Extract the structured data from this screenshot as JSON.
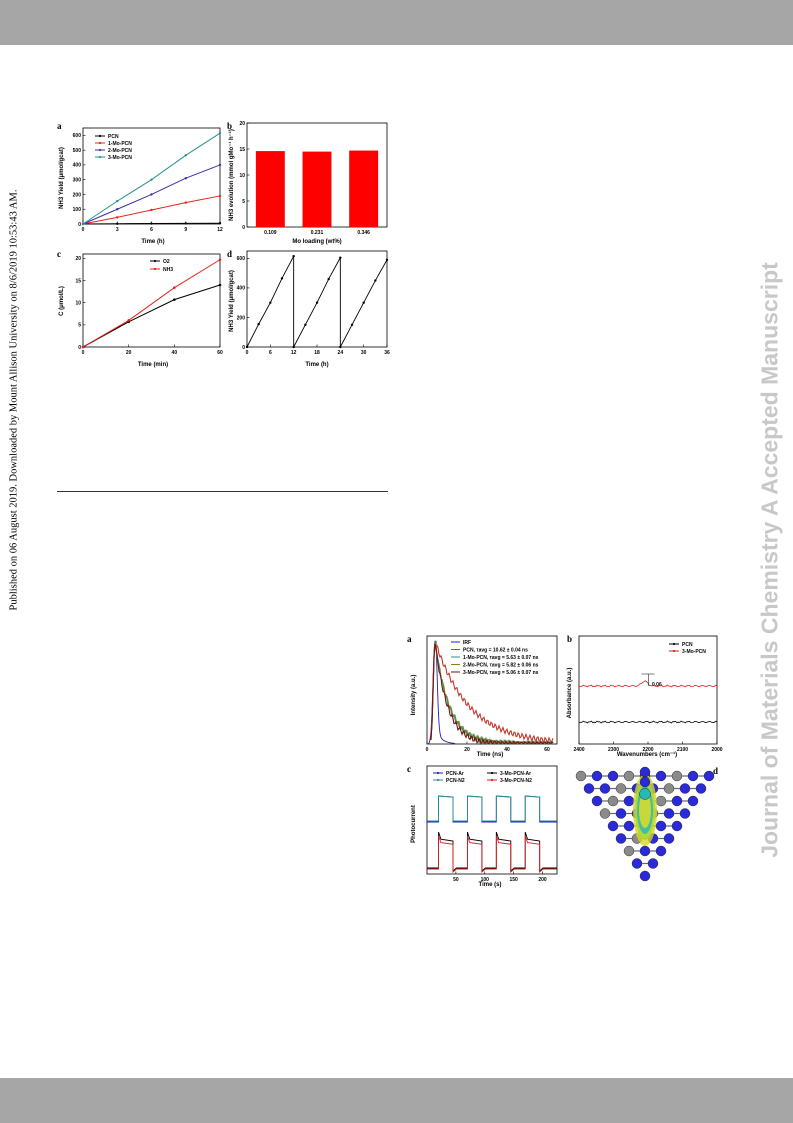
{
  "page": {
    "side_note": "Published on 06 August 2019. Downloaded by Mount Allison University on 8/6/2019 10:53:43 AM.",
    "watermark": "Journal of Materials Chemistry A Accepted Manuscript"
  },
  "figure1": {
    "panel_a": {
      "label": "a",
      "ylabel": "NH3 Yield (μmol/gcat)",
      "xlabel": "Time (h)"
    },
    "panel_b": {
      "label": "b",
      "ylabel": "NH3 evolution (mmol gMo⁻¹ h⁻¹)",
      "xlabel": "Mo loading (wt%)"
    },
    "panel_c": {
      "label": "c",
      "ylabel": "C (μmol/L)",
      "xlabel": "Time (min)"
    },
    "panel_d": {
      "label": "d",
      "ylabel": "NH3 Yield (μmol/gcat)",
      "xlabel": "Time (h)"
    }
  },
  "figure2": {
    "panel_a": {
      "label": "a",
      "ylabel": "Intensity (a.u.)",
      "xlabel": "Time (ns)"
    },
    "panel_b": {
      "label": "b",
      "ylabel": "Absorbance (a.u.)",
      "xlabel": "Wavenumbers (cm⁻¹)",
      "annotation": "0.06"
    },
    "panel_c": {
      "label": "c",
      "ylabel": "Photocurrent",
      "xlabel": "Time (s)"
    },
    "panel_d": {
      "label": "d"
    }
  },
  "chart_data": [
    {
      "type": "line",
      "id": "fig1a",
      "xlabel": "Time (h)",
      "ylabel": "NH3 Yield (μmol/gcat)",
      "xlim": [
        0,
        12
      ],
      "ylim": [
        0,
        650
      ],
      "xticks": [
        0,
        3,
        6,
        9,
        12
      ],
      "yticks": [
        0,
        100,
        200,
        300,
        400,
        500,
        600
      ],
      "x": [
        0,
        3,
        6,
        9,
        12
      ],
      "series": [
        {
          "name": "PCN",
          "color": "#000000",
          "values": [
            0,
            2,
            3,
            4,
            5
          ]
        },
        {
          "name": "1-Mo-PCN",
          "color": "#e8231c",
          "values": [
            0,
            45,
            95,
            145,
            190
          ]
        },
        {
          "name": "2-Mo-PCN",
          "color": "#3a2fa8",
          "values": [
            0,
            100,
            200,
            310,
            400
          ]
        },
        {
          "name": "3-Mo-PCN",
          "color": "#2a8f92",
          "values": [
            0,
            155,
            300,
            465,
            615
          ]
        }
      ]
    },
    {
      "type": "bar",
      "id": "fig1b",
      "xlabel": "Mo loading (wt%)",
      "ylabel": "NH3 evolution (mmol gMo⁻¹ h⁻¹)",
      "categories": [
        "0.109",
        "0.231",
        "0.346"
      ],
      "values": [
        14.6,
        14.5,
        14.7
      ],
      "ylim": [
        0,
        20
      ],
      "yticks": [
        0,
        5,
        10,
        15,
        20
      ],
      "color": "#ff0000"
    },
    {
      "type": "line",
      "id": "fig1c",
      "xlabel": "Time (min)",
      "ylabel": "C (μmol/L)",
      "xlim": [
        0,
        60
      ],
      "ylim": [
        0,
        21
      ],
      "xticks": [
        0,
        20,
        40,
        60
      ],
      "yticks": [
        0,
        5,
        10,
        15,
        20
      ],
      "x": [
        0,
        20,
        40,
        60
      ],
      "series": [
        {
          "name": "O2",
          "color": "#000000",
          "values": [
            0,
            5.7,
            10.7,
            14
          ]
        },
        {
          "name": "NH3",
          "color": "#e8231c",
          "values": [
            0,
            6,
            13.4,
            19.7
          ]
        }
      ]
    },
    {
      "type": "line",
      "id": "fig1d",
      "xlabel": "Time (h)",
      "ylabel": "NH3 Yield (μmol/gcat)",
      "xlim": [
        0,
        36
      ],
      "ylim": [
        0,
        650
      ],
      "xticks": [
        0,
        6,
        12,
        18,
        24,
        30,
        36
      ],
      "yticks": [
        0,
        200,
        400,
        600
      ],
      "x": [
        0,
        3,
        6,
        9,
        12,
        12,
        15,
        18,
        21,
        24,
        24,
        27,
        30,
        33,
        36
      ],
      "series": [
        {
          "color": "#000000",
          "values": [
            0,
            155,
            300,
            465,
            615,
            0,
            150,
            300,
            460,
            605,
            0,
            150,
            300,
            450,
            590
          ]
        }
      ]
    },
    {
      "type": "line",
      "id": "fig2a",
      "xlabel": "Time (ns)",
      "ylabel": "Intensity (a.u.)",
      "xlim": [
        0,
        65
      ],
      "ylim": [
        0,
        1
      ],
      "xticks": [
        0,
        20,
        40,
        60
      ],
      "series": [
        {
          "name": "IRF",
          "color": "#1f1fbf"
        },
        {
          "name": "PCN, τavg = 10.62 ± 0.04 ns",
          "color": "#c0392b",
          "tau": 10.62
        },
        {
          "name": "1-Mo-PCN, τavg = 5.63 ± 0.07 ns",
          "color": "#2a8f92",
          "tau": 5.63
        },
        {
          "name": "2-Mo-PCN, τavg = 5.82 ± 0.06 ns",
          "color": "#7a8a18",
          "tau": 5.82
        },
        {
          "name": "3-Mo-PCN, τavg = 5.06 ± 0.07 ns",
          "color": "#7a1010",
          "tau": 5.06
        }
      ]
    },
    {
      "type": "line",
      "id": "fig2b",
      "xlabel": "Wavenumbers (cm⁻¹)",
      "ylabel": "Absorbance (a.u.)",
      "xlim": [
        2400,
        2000
      ],
      "xticks": [
        2400,
        2300,
        2200,
        2100,
        2000
      ],
      "series": [
        {
          "name": "PCN",
          "color": "#000000"
        },
        {
          "name": "3-Mo-PCN",
          "color": "#d62020"
        }
      ]
    },
    {
      "type": "line",
      "id": "fig2c",
      "xlabel": "Time (s)",
      "ylabel": "Photocurrent",
      "xlim": [
        0,
        225
      ],
      "xticks": [
        50,
        100,
        150,
        200
      ],
      "series": [
        {
          "name": "PCN-Ar",
          "color": "#1f1fbf"
        },
        {
          "name": "PCN-N2",
          "color": "#2a8f92"
        },
        {
          "name": "3-Mo-PCN-Ar",
          "color": "#000000"
        },
        {
          "name": "3-Mo-PCN-N2",
          "color": "#d62020"
        }
      ]
    }
  ]
}
